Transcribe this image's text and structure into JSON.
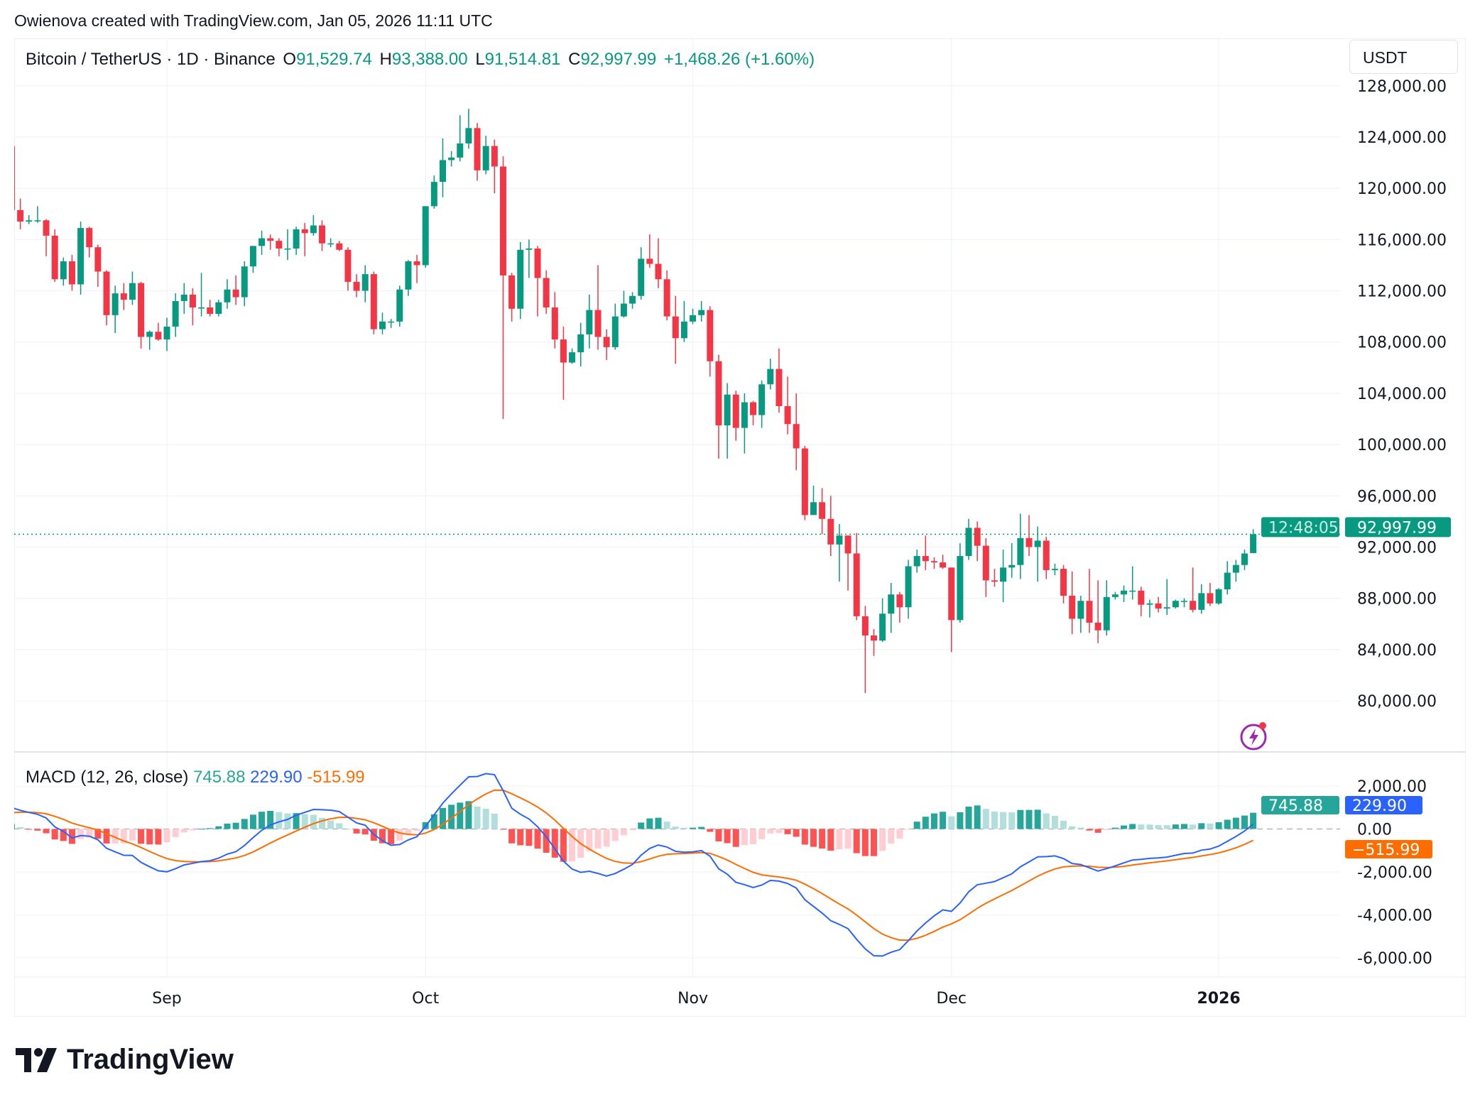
{
  "credit": "Owienova created with TradingView.com, Jan 05, 2026 11:11 UTC",
  "legend": {
    "symbol": "Bitcoin / TetherUS · 1D · Binance",
    "open_label": "O",
    "open": "91,529.74",
    "high_label": "H",
    "high": "93,388.00",
    "low_label": "L",
    "low": "91,514.81",
    "close_label": "C",
    "close": "92,997.99",
    "change": "+1,468.26 (+1.60%)"
  },
  "currency_button": "USDT",
  "last_price": {
    "price": "92,997.99",
    "countdown": "12:48:05",
    "value": 92997.99
  },
  "macd_legend": {
    "title": "MACD (12, 26, close)",
    "histogram": "745.88",
    "macd": "229.90",
    "signal": "-515.99"
  },
  "logo_text": "TradingView",
  "colors": {
    "up": "#089981",
    "down": "#F23645",
    "macd": "#2962FF",
    "signal": "#FF6D00",
    "hist_up_strong": "#26A69A",
    "hist_up_weak": "#B2DFDB",
    "hist_down_strong": "#FF5252",
    "hist_down_weak": "#FFCDD2"
  },
  "icons": {
    "alert": "lightning-icon",
    "logo": "tradingview-logo-icon"
  },
  "chart_data": [
    {
      "type": "candlestick",
      "symbol": "BTCUSDT",
      "interval": "1D",
      "ylim": [
        76000,
        128000
      ],
      "y_ticks": [
        "128,000.00",
        "124,000.00",
        "120,000.00",
        "116,000.00",
        "112,000.00",
        "108,000.00",
        "104,000.00",
        "100,000.00",
        "96,000.00",
        "92,000.00",
        "88,000.00",
        "84,000.00",
        "80,000.00"
      ],
      "y_tick_values": [
        128000,
        124000,
        120000,
        116000,
        112000,
        108000,
        104000,
        100000,
        96000,
        92000,
        88000,
        84000,
        80000
      ],
      "x_ticks": [
        {
          "label": "Sep",
          "date": "2025-09-01"
        },
        {
          "label": "Oct",
          "date": "2025-10-01"
        },
        {
          "label": "Nov",
          "date": "2025-11-01"
        },
        {
          "label": "Dec",
          "date": "2025-12-01"
        },
        {
          "label": "2026",
          "date": "2026-01-01"
        }
      ],
      "grid": true,
      "columns": [
        "date",
        "open",
        "high",
        "low",
        "close"
      ],
      "candles": [
        [
          "2025-08-14",
          123300,
          124400,
          117200,
          118300
        ],
        [
          "2025-08-15",
          118300,
          119200,
          116800,
          117400
        ],
        [
          "2025-08-16",
          117400,
          117900,
          117200,
          117500
        ],
        [
          "2025-08-17",
          117500,
          118600,
          117300,
          117500
        ],
        [
          "2025-08-18",
          117500,
          117600,
          114700,
          116300
        ],
        [
          "2025-08-19",
          116300,
          116800,
          112700,
          112900
        ],
        [
          "2025-08-20",
          112900,
          114600,
          112400,
          114300
        ],
        [
          "2025-08-21",
          114300,
          114800,
          112000,
          112500
        ],
        [
          "2025-08-22",
          112500,
          117400,
          111700,
          116900
        ],
        [
          "2025-08-23",
          116900,
          117000,
          114600,
          115400
        ],
        [
          "2025-08-24",
          115400,
          115600,
          112300,
          113500
        ],
        [
          "2025-08-25",
          113500,
          113600,
          109300,
          110100
        ],
        [
          "2025-08-26",
          110100,
          112400,
          108700,
          111800
        ],
        [
          "2025-08-27",
          111800,
          112600,
          110500,
          111300
        ],
        [
          "2025-08-28",
          111300,
          113500,
          110900,
          112600
        ],
        [
          "2025-08-29",
          112600,
          112700,
          107500,
          108400
        ],
        [
          "2025-08-30",
          108400,
          108900,
          107400,
          108800
        ],
        [
          "2025-08-31",
          108800,
          109500,
          108100,
          108200
        ],
        [
          "2025-09-01",
          108200,
          109900,
          107300,
          109200
        ],
        [
          "2025-09-02",
          109200,
          111800,
          108400,
          111200
        ],
        [
          "2025-09-03",
          111200,
          112600,
          110200,
          111700
        ],
        [
          "2025-09-04",
          111700,
          112200,
          109300,
          110700
        ],
        [
          "2025-09-05",
          110700,
          113400,
          110000,
          110700
        ],
        [
          "2025-09-06",
          110700,
          111300,
          110000,
          110200
        ],
        [
          "2025-09-07",
          110200,
          111300,
          110000,
          111100
        ],
        [
          "2025-09-08",
          111100,
          112900,
          110600,
          112100
        ],
        [
          "2025-09-09",
          112100,
          113200,
          110900,
          111500
        ],
        [
          "2025-09-10",
          111500,
          114300,
          110800,
          113900
        ],
        [
          "2025-09-11",
          113900,
          115500,
          113400,
          115500
        ],
        [
          "2025-09-12",
          115500,
          116700,
          114800,
          116100
        ],
        [
          "2025-09-13",
          116100,
          116400,
          115200,
          115900
        ],
        [
          "2025-09-14",
          115900,
          116100,
          114700,
          115300
        ],
        [
          "2025-09-15",
          115300,
          116800,
          114400,
          115300
        ],
        [
          "2025-09-16",
          115300,
          117000,
          114800,
          116800
        ],
        [
          "2025-09-17",
          116800,
          117300,
          114700,
          116500
        ],
        [
          "2025-09-18",
          116500,
          117900,
          116300,
          117100
        ],
        [
          "2025-09-19",
          117100,
          117500,
          115100,
          115700
        ],
        [
          "2025-09-20",
          115700,
          116100,
          115400,
          115700
        ],
        [
          "2025-09-21",
          115700,
          115900,
          115100,
          115200
        ],
        [
          "2025-09-22",
          115200,
          115400,
          112000,
          112700
        ],
        [
          "2025-09-23",
          112700,
          113300,
          111500,
          112000
        ],
        [
          "2025-09-24",
          112000,
          114000,
          111100,
          113300
        ],
        [
          "2025-09-25",
          113300,
          113500,
          108600,
          109000
        ],
        [
          "2025-09-26",
          109000,
          110300,
          108600,
          109600
        ],
        [
          "2025-09-27",
          109600,
          109800,
          109100,
          109600
        ],
        [
          "2025-09-28",
          109600,
          112400,
          109200,
          112100
        ],
        [
          "2025-09-29",
          112100,
          114400,
          111600,
          114300
        ],
        [
          "2025-09-30",
          114300,
          114800,
          112600,
          114000
        ],
        [
          "2025-10-01",
          114000,
          118600,
          113800,
          118600
        ],
        [
          "2025-10-02",
          118600,
          121000,
          118400,
          120500
        ],
        [
          "2025-10-03",
          120500,
          123900,
          119300,
          122200
        ],
        [
          "2025-10-04",
          122200,
          122900,
          121700,
          122400
        ],
        [
          "2025-10-05",
          122400,
          125700,
          122100,
          123500
        ],
        [
          "2025-10-06",
          123500,
          126200,
          123100,
          124700
        ],
        [
          "2025-10-07",
          124700,
          125100,
          120600,
          121400
        ],
        [
          "2025-10-08",
          121400,
          124100,
          121100,
          123300
        ],
        [
          "2025-10-09",
          123300,
          123800,
          119600,
          121700
        ],
        [
          "2025-10-10",
          121700,
          122500,
          102000,
          113200
        ],
        [
          "2025-10-11",
          113200,
          113400,
          109600,
          110600
        ],
        [
          "2025-10-12",
          110600,
          115800,
          109800,
          115200
        ],
        [
          "2025-10-13",
          115200,
          116000,
          113000,
          115300
        ],
        [
          "2025-10-14",
          115300,
          115500,
          110000,
          113000
        ],
        [
          "2025-10-15",
          113000,
          113600,
          110200,
          110700
        ],
        [
          "2025-10-16",
          110700,
          111900,
          107500,
          108200
        ],
        [
          "2025-10-17",
          108200,
          109200,
          103500,
          106400
        ],
        [
          "2025-10-18",
          106400,
          107500,
          106300,
          107200
        ],
        [
          "2025-10-19",
          107200,
          109500,
          106100,
          108600
        ],
        [
          "2025-10-20",
          108600,
          111700,
          107500,
          110500
        ],
        [
          "2025-10-21",
          110500,
          114000,
          107400,
          108400
        ],
        [
          "2025-10-22",
          108400,
          109000,
          106600,
          107600
        ],
        [
          "2025-10-23",
          107600,
          111000,
          107400,
          110000
        ],
        [
          "2025-10-24",
          110000,
          112000,
          109900,
          111000
        ],
        [
          "2025-10-25",
          111000,
          111900,
          110600,
          111600
        ],
        [
          "2025-10-26",
          111600,
          115400,
          111300,
          114500
        ],
        [
          "2025-10-27",
          114500,
          116400,
          113800,
          114100
        ],
        [
          "2025-10-28",
          114100,
          116100,
          112200,
          112900
        ],
        [
          "2025-10-29",
          112900,
          113600,
          109700,
          110000
        ],
        [
          "2025-10-30",
          110000,
          111600,
          106300,
          108300
        ],
        [
          "2025-10-31",
          108300,
          111200,
          108000,
          109600
        ],
        [
          "2025-11-01",
          109600,
          110600,
          109400,
          110100
        ],
        [
          "2025-11-02",
          110100,
          111200,
          109600,
          110500
        ],
        [
          "2025-11-03",
          110500,
          110800,
          105300,
          106500
        ],
        [
          "2025-11-04",
          106500,
          107000,
          98900,
          101500
        ],
        [
          "2025-11-05",
          101500,
          104800,
          98900,
          103900
        ],
        [
          "2025-11-06",
          103900,
          104200,
          100300,
          101300
        ],
        [
          "2025-11-07",
          101300,
          104000,
          99300,
          103300
        ],
        [
          "2025-11-08",
          103300,
          103400,
          101500,
          102300
        ],
        [
          "2025-11-09",
          102300,
          105000,
          101300,
          104700
        ],
        [
          "2025-11-10",
          104700,
          106700,
          104300,
          105900
        ],
        [
          "2025-11-11",
          105900,
          107500,
          102500,
          103000
        ],
        [
          "2025-11-12",
          103000,
          105300,
          100800,
          101600
        ],
        [
          "2025-11-13",
          101600,
          104000,
          98000,
          99700
        ],
        [
          "2025-11-14",
          99700,
          99900,
          94100,
          94500
        ],
        [
          "2025-11-15",
          94500,
          96800,
          94500,
          95500
        ],
        [
          "2025-11-16",
          95500,
          96600,
          93000,
          94200
        ],
        [
          "2025-11-17",
          94200,
          96000,
          91300,
          92200
        ],
        [
          "2025-11-18",
          92200,
          93800,
          89300,
          92900
        ],
        [
          "2025-11-19",
          92900,
          92900,
          88600,
          91500
        ],
        [
          "2025-11-20",
          91500,
          93100,
          86300,
          86600
        ],
        [
          "2025-11-21",
          86600,
          87400,
          80600,
          85100
        ],
        [
          "2025-11-22",
          85100,
          85600,
          83500,
          84700
        ],
        [
          "2025-11-23",
          84700,
          88000,
          84600,
          86800
        ],
        [
          "2025-11-24",
          86800,
          89200,
          85300,
          88300
        ],
        [
          "2025-11-25",
          88300,
          88500,
          86100,
          87300
        ],
        [
          "2025-11-26",
          87300,
          91000,
          86400,
          90500
        ],
        [
          "2025-11-27",
          90500,
          91800,
          90000,
          91300
        ],
        [
          "2025-11-28",
          91300,
          92900,
          90200,
          90900
        ],
        [
          "2025-11-29",
          90900,
          91200,
          90300,
          90800
        ],
        [
          "2025-11-30",
          90800,
          91400,
          90300,
          90400
        ],
        [
          "2025-12-01",
          90400,
          90400,
          83800,
          86300
        ],
        [
          "2025-12-02",
          86300,
          92300,
          86100,
          91300
        ],
        [
          "2025-12-03",
          91300,
          94200,
          91000,
          93500
        ],
        [
          "2025-12-04",
          93500,
          94000,
          90900,
          92100
        ],
        [
          "2025-12-05",
          92100,
          92700,
          88100,
          89400
        ],
        [
          "2025-12-06",
          89400,
          90300,
          88900,
          89300
        ],
        [
          "2025-12-07",
          89300,
          91800,
          87700,
          90400
        ],
        [
          "2025-12-08",
          90400,
          92300,
          89600,
          90600
        ],
        [
          "2025-12-09",
          90600,
          94600,
          89500,
          92700
        ],
        [
          "2025-12-10",
          92700,
          94500,
          91300,
          92000
        ],
        [
          "2025-12-11",
          92000,
          93600,
          89300,
          92500
        ],
        [
          "2025-12-12",
          92500,
          92800,
          89500,
          90200
        ],
        [
          "2025-12-13",
          90200,
          90700,
          89800,
          90300
        ],
        [
          "2025-12-14",
          90300,
          90600,
          87600,
          88200
        ],
        [
          "2025-12-15",
          88200,
          90100,
          85200,
          86400
        ],
        [
          "2025-12-16",
          86400,
          88200,
          85300,
          87800
        ],
        [
          "2025-12-17",
          87800,
          90300,
          85300,
          86100
        ],
        [
          "2025-12-18",
          86100,
          89400,
          84500,
          85500
        ],
        [
          "2025-12-19",
          85500,
          89400,
          85100,
          88100
        ],
        [
          "2025-12-20",
          88100,
          88500,
          87900,
          88300
        ],
        [
          "2025-12-21",
          88300,
          89000,
          87700,
          88600
        ],
        [
          "2025-12-22",
          88600,
          90500,
          87900,
          88600
        ],
        [
          "2025-12-23",
          88600,
          88900,
          86600,
          87500
        ],
        [
          "2025-12-24",
          87500,
          87900,
          86500,
          87600
        ],
        [
          "2025-12-25",
          87600,
          88100,
          86900,
          87200
        ],
        [
          "2025-12-26",
          87200,
          89500,
          86700,
          87300
        ],
        [
          "2025-12-27",
          87300,
          87900,
          87200,
          87800
        ],
        [
          "2025-12-28",
          87800,
          88000,
          87300,
          87800
        ],
        [
          "2025-12-29",
          87800,
          90400,
          86900,
          87100
        ],
        [
          "2025-12-30",
          87100,
          89100,
          86800,
          88400
        ],
        [
          "2025-12-31",
          88400,
          89200,
          87400,
          87600
        ],
        [
          "2026-01-01",
          87600,
          88800,
          87500,
          88700
        ],
        [
          "2026-01-02",
          88700,
          90900,
          88300,
          90000
        ],
        [
          "2026-01-03",
          90000,
          91000,
          89300,
          90600
        ],
        [
          "2026-01-04",
          90600,
          91800,
          90200,
          91500
        ],
        [
          "2026-01-05",
          91529.74,
          93388.0,
          91514.81,
          92997.99
        ]
      ]
    },
    {
      "type": "macd",
      "parameters": {
        "fast": 12,
        "slow": 26,
        "source": "close"
      },
      "ylim": [
        -6700,
        3000
      ],
      "y_ticks": [
        "2,000.00",
        "0.00",
        "-2,000.00",
        "-4,000.00",
        "-6,000.00"
      ],
      "y_tick_values": [
        2000,
        0,
        -2000,
        -4000,
        -6000
      ],
      "last_values": {
        "histogram": 745.88,
        "macd": 229.9,
        "signal": -515.99
      }
    }
  ]
}
